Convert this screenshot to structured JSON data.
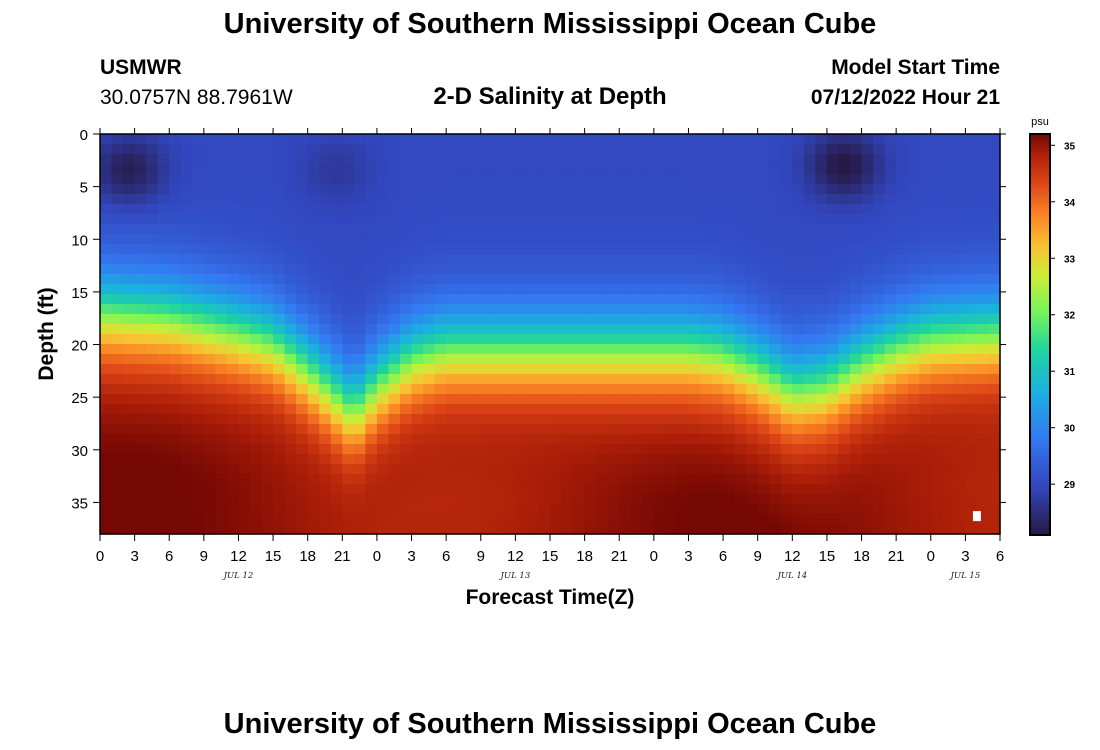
{
  "header": {
    "title": "University of Southern Mississippi Ocean Cube",
    "station": "USMWR",
    "coords": "30.0757N  88.7961W",
    "chart_title": "2-D Salinity at Depth",
    "start_label": "Model Start Time",
    "start_value": "07/12/2022 Hour 21"
  },
  "footer": {
    "title": "University of Southern Mississippi Ocean Cube"
  },
  "chart_data": {
    "type": "heatmap",
    "title": "2-D Salinity at Depth",
    "xlabel": "Forecast Time(Z)",
    "ylabel": "Depth (ft)",
    "x_units": "forecast hours from 0Z JUL 12",
    "x_range": [
      0,
      78
    ],
    "x_ticks": [
      0,
      3,
      6,
      9,
      12,
      15,
      18,
      21,
      24,
      27,
      30,
      33,
      36,
      39,
      42,
      45,
      48,
      51,
      54,
      57,
      60,
      63,
      66,
      69,
      72,
      75,
      78
    ],
    "x_tick_labels": [
      "0",
      "3",
      "6",
      "9",
      "12",
      "15",
      "18",
      "21",
      "0",
      "3",
      "6",
      "9",
      "12",
      "15",
      "18",
      "21",
      "0",
      "3",
      "6",
      "9",
      "12",
      "15",
      "18",
      "21",
      "0",
      "3",
      "6"
    ],
    "day_labels": [
      {
        "label": "JUL 12",
        "hour": 12
      },
      {
        "label": "JUL 13",
        "hour": 36
      },
      {
        "label": "JUL 14",
        "hour": 60
      },
      {
        "label": "JUL 15",
        "hour": 75
      }
    ],
    "y_range": [
      0,
      38
    ],
    "y_ticks": [
      0,
      5,
      10,
      15,
      20,
      25,
      30,
      35
    ],
    "y_tick_labels": [
      "0",
      "5",
      "10",
      "15",
      "20",
      "25",
      "30",
      "35"
    ],
    "colorbar": {
      "unit": "psu",
      "min": 28.1,
      "max": 35.2,
      "ticks": [
        29,
        30,
        31,
        32,
        33,
        34,
        35
      ],
      "tick_labels": [
        "29",
        "30",
        "31",
        "32",
        "33",
        "34",
        "35"
      ]
    },
    "halocline_depth_ft_by_hour": [
      [
        0,
        17
      ],
      [
        6,
        17.5
      ],
      [
        12,
        19
      ],
      [
        15,
        20
      ],
      [
        18,
        22.5
      ],
      [
        21,
        25.5
      ],
      [
        22,
        26.5
      ],
      [
        24,
        24
      ],
      [
        27,
        21.5
      ],
      [
        30,
        20.5
      ],
      [
        36,
        20.5
      ],
      [
        42,
        20.5
      ],
      [
        48,
        20.5
      ],
      [
        51,
        20.5
      ],
      [
        54,
        21
      ],
      [
        57,
        22.5
      ],
      [
        60,
        24.5
      ],
      [
        63,
        24
      ],
      [
        66,
        22
      ],
      [
        69,
        20.5
      ],
      [
        72,
        19.5
      ],
      [
        78,
        19
      ]
    ],
    "surface_minimum_patches": [
      {
        "hour": 2.5,
        "depth_ft": 3.5,
        "salinity_psu": 28.2
      },
      {
        "hour": 20.5,
        "depth_ft": 3.5,
        "salinity_psu": 28.7
      },
      {
        "hour": 64.5,
        "depth_ft": 3,
        "salinity_psu": 28.1
      }
    ],
    "surface_salinity_psu": 29.0,
    "bottom_salinity_psu": 35.0
  }
}
